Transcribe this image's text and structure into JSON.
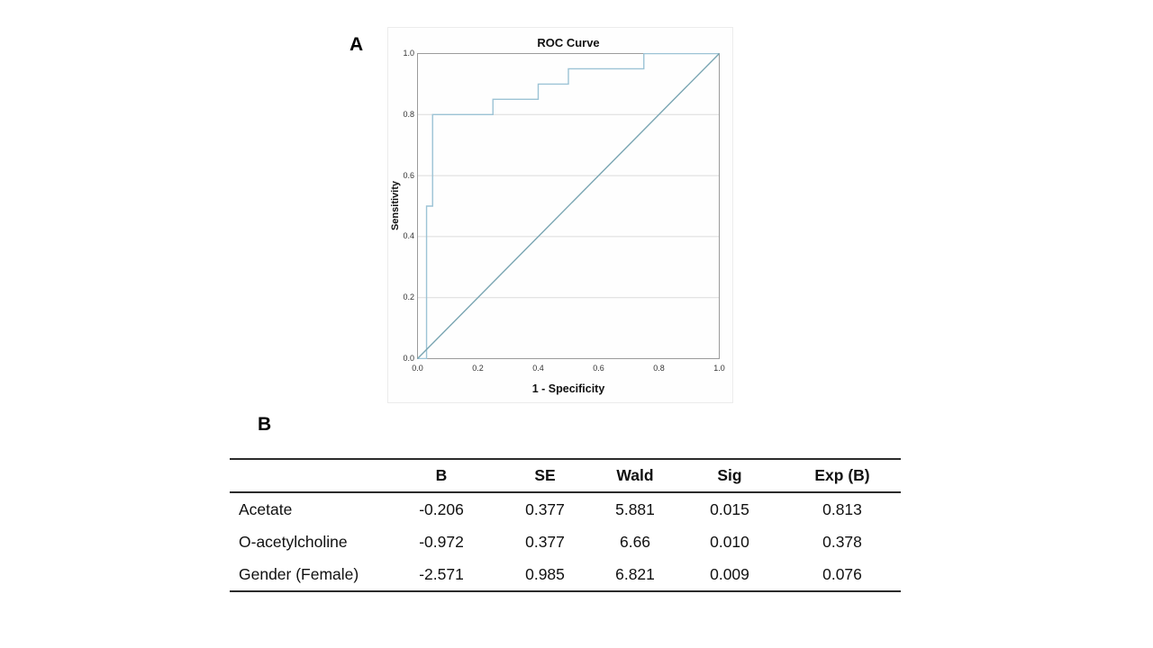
{
  "panels": {
    "a_label": "A",
    "b_label": "B"
  },
  "chart_data": {
    "type": "line",
    "title": "ROC Curve",
    "xlabel": "1 - Specificity",
    "ylabel": "Sensitivity",
    "xlim": [
      0,
      1
    ],
    "ylim": [
      0,
      1
    ],
    "grid": true,
    "ticks": [
      0,
      0.2,
      0.4,
      0.6,
      0.8,
      1
    ],
    "tick_labels": [
      "0.0",
      "0.2",
      "0.4",
      "0.6",
      "0.8",
      "1.0"
    ],
    "colors": {
      "grid": "#dcdcdc",
      "frame": "#9b9b9b"
    },
    "series": [
      {
        "name": "ROC curve",
        "color": "#9cc3d5",
        "points": [
          [
            0,
            0
          ],
          [
            0.03,
            0
          ],
          [
            0.03,
            0.5
          ],
          [
            0.05,
            0.5
          ],
          [
            0.05,
            0.8
          ],
          [
            0.25,
            0.8
          ],
          [
            0.25,
            0.85
          ],
          [
            0.4,
            0.85
          ],
          [
            0.4,
            0.9
          ],
          [
            0.5,
            0.9
          ],
          [
            0.5,
            0.95
          ],
          [
            0.75,
            0.95
          ],
          [
            0.75,
            1
          ],
          [
            1,
            1
          ]
        ]
      },
      {
        "name": "Reference line",
        "color": "#79a5b2",
        "points": [
          [
            0,
            0
          ],
          [
            1,
            1
          ]
        ]
      }
    ]
  },
  "table": {
    "headers": [
      "B",
      "SE",
      "Wald",
      "Sig",
      "Exp (B)"
    ],
    "rows": [
      {
        "label": "Acetate",
        "values": [
          "-0.206",
          "0.377",
          "5.881",
          "0.015",
          "0.813"
        ]
      },
      {
        "label": "O-acetylcholine",
        "values": [
          "-0.972",
          "0.377",
          "6.66",
          "0.010",
          "0.378"
        ]
      },
      {
        "label": "Gender (Female)",
        "values": [
          "-2.571",
          "0.985",
          "6.821",
          "0.009",
          "0.076"
        ]
      }
    ]
  }
}
